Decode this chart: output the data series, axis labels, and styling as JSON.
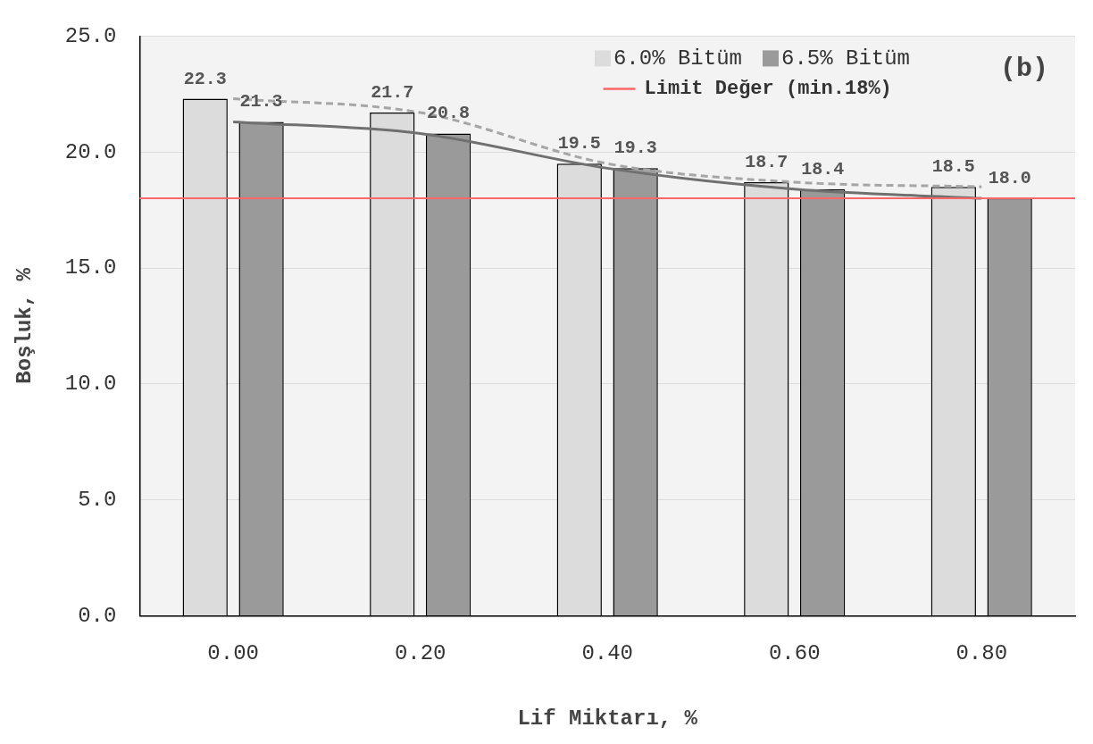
{
  "chart_data": {
    "type": "bar",
    "xlabel": "Lif Miktarı, %",
    "ylabel": "Boşluk, %",
    "categories": [
      "0.00",
      "0.20",
      "0.40",
      "0.60",
      "0.80"
    ],
    "series": [
      {
        "name": "6.0% Bitüm",
        "color": "#dcdcdc",
        "values": [
          22.3,
          21.7,
          19.5,
          18.7,
          18.5
        ],
        "value_labels": [
          "22.3",
          "21.7",
          "19.5",
          "18.7",
          "18.5"
        ]
      },
      {
        "name": "6.5% Bitüm",
        "color": "#9a9a9a",
        "values": [
          21.3,
          20.8,
          19.3,
          18.4,
          18.0
        ],
        "value_labels": [
          "21.3",
          "20.8",
          "19.3",
          "18.4",
          "18.0"
        ]
      },
      {
        "type": "line",
        "color": "#a6a6a6",
        "line_style": "dashed",
        "values": [
          22.3,
          21.7,
          19.5,
          18.7,
          18.5
        ]
      },
      {
        "type": "line",
        "color": "#707070",
        "line_style": "solid",
        "values": [
          21.3,
          20.8,
          19.3,
          18.4,
          18.0
        ]
      }
    ],
    "ylim": [
      0,
      25
    ],
    "yticks": [
      {
        "value": 0,
        "label": "0.0"
      },
      {
        "value": 5,
        "label": "5.0"
      },
      {
        "value": 10,
        "label": "10.0"
      },
      {
        "value": 15,
        "label": "15.0"
      },
      {
        "value": 20,
        "label": "20.0"
      },
      {
        "value": 25,
        "label": "25.0"
      }
    ],
    "grid": "y",
    "legend": "top right",
    "marker": "none",
    "ref_lines": [
      {
        "axis": "y",
        "value": 18,
        "label": "Limit Değer (min.18%)",
        "color": "#ff6666"
      }
    ],
    "annotations": [
      "(b)"
    ]
  }
}
